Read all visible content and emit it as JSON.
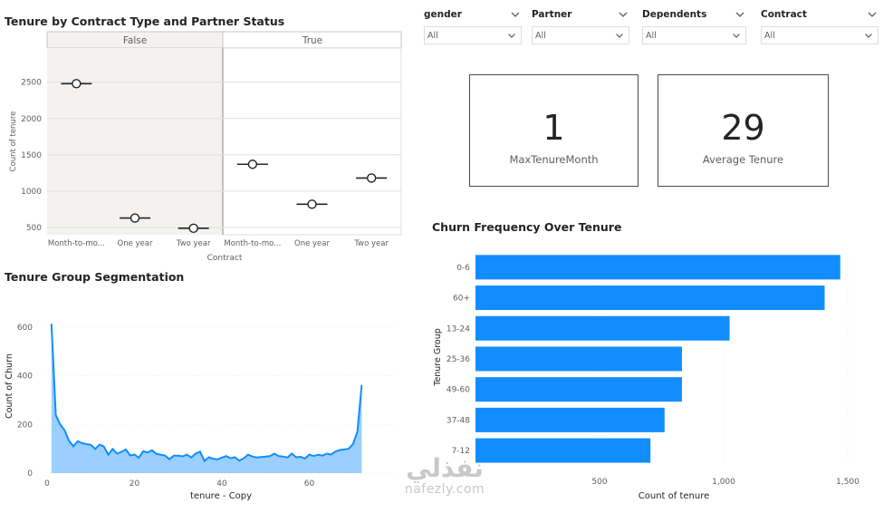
{
  "titles": {
    "top_left": "Tenure by Contract Type and Partner Status",
    "bottom_left": "Tenure Group Segmentation",
    "bottom_right": "Churn Frequency Over Tenure"
  },
  "slicers": [
    {
      "label": "gender",
      "value": "All",
      "icon": "chevron-down-icon"
    },
    {
      "label": "Partner",
      "value": "All",
      "icon": "chevron-down-icon"
    },
    {
      "label": "Dependents",
      "value": "All",
      "icon": "chevron-down-icon"
    },
    {
      "label": "Contract",
      "value": "All",
      "icon": "chevron-down-icon"
    }
  ],
  "cards": [
    {
      "value": "1",
      "label": "MaxTenureMonth"
    },
    {
      "value": "29",
      "label": "Average Tenure"
    }
  ],
  "watermark": {
    "arabic": "نفذلي",
    "latin": "nafezly.com"
  },
  "chart_data": [
    {
      "type": "scatter",
      "title": "Tenure by Contract Type and Partner Status",
      "xlabel": "Contract",
      "ylabel": "Count of tenure",
      "panels": [
        "False",
        "True"
      ],
      "categories": [
        "Month-to-mo...",
        "One year",
        "Two year"
      ],
      "yticks": [
        500,
        1000,
        1500,
        2000,
        2500
      ],
      "ylim": [
        400,
        2970
      ],
      "grid": true,
      "series": [
        {
          "panel": "False",
          "values": [
            2480,
            630,
            490
          ]
        },
        {
          "panel": "True",
          "values": [
            1370,
            820,
            1180
          ]
        }
      ]
    },
    {
      "type": "area",
      "title": "Tenure Group Segmentation",
      "xlabel": "tenure - Copy",
      "ylabel": "Count of Churn",
      "xticks": [
        0,
        20,
        40,
        60
      ],
      "yticks": [
        0,
        200,
        400,
        600
      ],
      "xlim": [
        0,
        80
      ],
      "ylim": [
        0,
        640
      ],
      "color": "#118DFF",
      "x": [
        1,
        2,
        3,
        4,
        5,
        6,
        7,
        8,
        9,
        10,
        11,
        12,
        13,
        14,
        15,
        16,
        17,
        18,
        19,
        20,
        21,
        22,
        23,
        24,
        25,
        26,
        27,
        28,
        29,
        30,
        31,
        32,
        33,
        34,
        35,
        36,
        37,
        38,
        39,
        40,
        41,
        42,
        43,
        44,
        45,
        46,
        47,
        48,
        49,
        50,
        51,
        52,
        53,
        54,
        55,
        56,
        57,
        58,
        59,
        60,
        61,
        62,
        63,
        64,
        65,
        66,
        67,
        68,
        69,
        70,
        71,
        72
      ],
      "y": [
        613,
        238,
        200,
        176,
        133,
        110,
        131,
        123,
        119,
        116,
        99,
        117,
        109,
        76,
        99,
        80,
        87,
        97,
        73,
        76,
        63,
        90,
        85,
        94,
        79,
        76,
        72,
        57,
        72,
        72,
        69,
        76,
        64,
        80,
        88,
        50,
        65,
        59,
        56,
        64,
        70,
        61,
        65,
        51,
        61,
        76,
        68,
        64,
        66,
        68,
        70,
        80,
        70,
        68,
        64,
        80,
        65,
        67,
        60,
        76,
        70,
        76,
        72,
        80,
        76,
        89,
        95,
        97,
        100,
        119,
        170,
        362
      ]
    },
    {
      "type": "bar",
      "orientation": "horizontal",
      "title": "Churn Frequency Over Tenure",
      "xlabel": "Count of tenure",
      "ylabel": "Tenure Group",
      "categories": [
        "0-6",
        "60+",
        "13-24",
        "25-36",
        "49-60",
        "37-48",
        "7-12"
      ],
      "values": [
        1470,
        1407,
        1024,
        832,
        832,
        762,
        705
      ],
      "xticks": [
        500,
        1000,
        1500
      ],
      "xtick_labels": [
        "500",
        "1,000",
        "1,500"
      ],
      "xlim": [
        0,
        1500
      ],
      "color": "#118DFF"
    }
  ]
}
